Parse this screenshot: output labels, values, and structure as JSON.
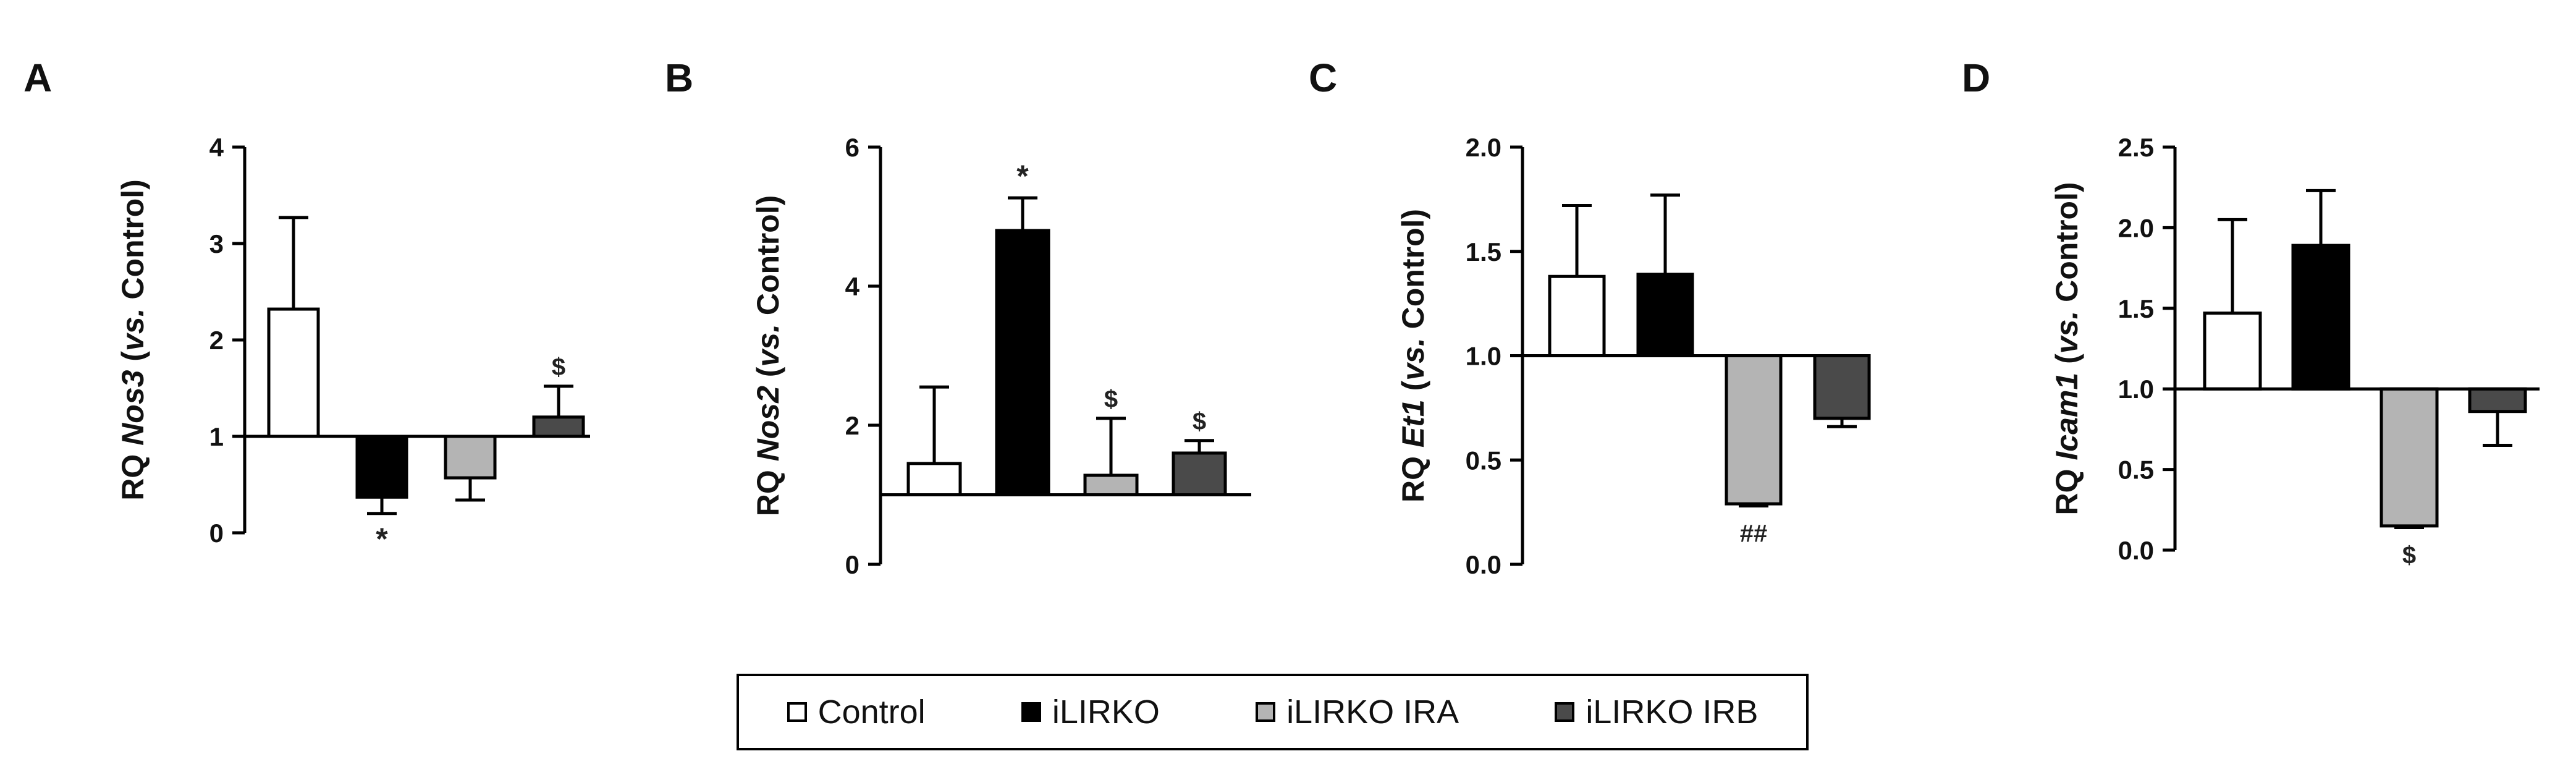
{
  "colors": {
    "Control": "#ffffff",
    "iLIRKO": "#000000",
    "iLIRKO IRA": "#b4b4b4",
    "iLIRKO IRB": "#4a4a4a"
  },
  "legend": [
    "Control",
    "iLIRKO",
    "iLIRKO IRA",
    "iLIRKO IRB"
  ],
  "chart_data": [
    {
      "type": "bar",
      "panel": "A",
      "ylabel_prefix": "RQ ",
      "gene": "Nos3",
      "ylabel_suffix_italic": "vs.",
      "ylabel_suffix": " Control)",
      "ylim": [
        0,
        4
      ],
      "yticks": [
        "0",
        "1",
        "2",
        "3",
        "4"
      ],
      "ytick_values": [
        0,
        1,
        2,
        3,
        4
      ],
      "baseline": 1,
      "categories": [
        "Control",
        "iLIRKO",
        "iLIRKO IRA",
        "iLIRKO IRB"
      ],
      "values": [
        2.32,
        0.37,
        0.57,
        1.2
      ],
      "errors": [
        0.95,
        0.17,
        0.23,
        0.32
      ],
      "annotations": [
        "",
        "*",
        "",
        "$"
      ]
    },
    {
      "type": "bar",
      "panel": "B",
      "ylabel_prefix": "RQ ",
      "gene": "Nos2",
      "ylabel_suffix_italic": "vs.",
      "ylabel_suffix": " Control)",
      "ylim": [
        0,
        6
      ],
      "yticks": [
        "0",
        "2",
        "4",
        "6"
      ],
      "ytick_values": [
        0,
        2,
        4,
        6
      ],
      "baseline": 1,
      "categories": [
        "Control",
        "iLIRKO",
        "iLIRKO IRA",
        "iLIRKO IRB"
      ],
      "values": [
        1.45,
        4.8,
        1.28,
        1.6
      ],
      "errors": [
        1.1,
        0.47,
        0.82,
        0.18
      ],
      "annotations": [
        "",
        "*",
        "$",
        "$"
      ]
    },
    {
      "type": "bar",
      "panel": "C",
      "ylabel_prefix": "RQ ",
      "gene": "Et1",
      "ylabel_suffix_italic": "vs.",
      "ylabel_suffix": " Control)",
      "ylim": [
        0,
        2
      ],
      "yticks": [
        "0.0",
        "0.5",
        "1.0",
        "1.5",
        "2.0"
      ],
      "ytick_values": [
        0,
        0.5,
        1,
        1.5,
        2
      ],
      "baseline": 1,
      "categories": [
        "Control",
        "iLIRKO",
        "iLIRKO IRA",
        "iLIRKO IRB"
      ],
      "values": [
        1.38,
        1.39,
        0.29,
        0.7
      ],
      "errors": [
        0.34,
        0.38,
        0.01,
        0.04
      ],
      "annotations": [
        "",
        "",
        "##",
        ""
      ]
    },
    {
      "type": "bar",
      "panel": "D",
      "ylabel_prefix": "RQ ",
      "gene": "Icam1",
      "ylabel_suffix_italic": "vs.",
      "ylabel_suffix": " Control)",
      "ylim": [
        0,
        2.5
      ],
      "yticks": [
        "0.0",
        "0.5",
        "1.0",
        "1.5",
        "2.0",
        "2.5"
      ],
      "ytick_values": [
        0,
        0.5,
        1,
        1.5,
        2,
        2.5
      ],
      "baseline": 1,
      "categories": [
        "Control",
        "iLIRKO",
        "iLIRKO IRA",
        "iLIRKO IRB"
      ],
      "values": [
        1.47,
        1.89,
        0.15,
        0.86
      ],
      "errors": [
        0.58,
        0.34,
        0.01,
        0.21
      ],
      "annotations": [
        "",
        "",
        "$",
        ""
      ]
    }
  ]
}
